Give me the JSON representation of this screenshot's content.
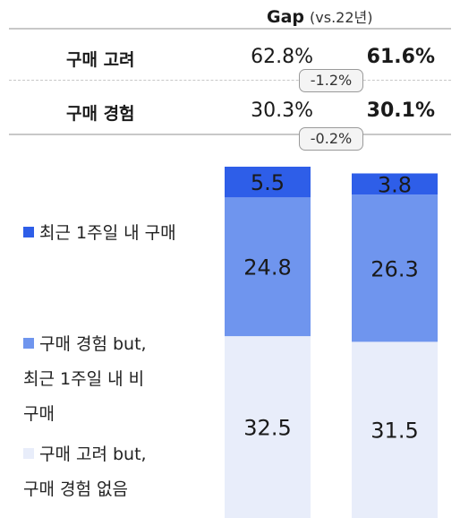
{
  "header": {
    "gap_label": "Gap",
    "gap_sub": "(vs.22년)"
  },
  "rows": [
    {
      "label": "구매 고려",
      "prev": "62.8%",
      "curr": "61.6%",
      "change": "-1.2%"
    },
    {
      "label": "구매 경험",
      "prev": "30.3%",
      "curr": "30.1%",
      "change": "-0.2%"
    }
  ],
  "legend": [
    {
      "label": "최근 1주일 내 구매",
      "lines": [
        "최근 1주일 내 구매"
      ],
      "color": "#2e5ee8"
    },
    {
      "label": "구매 경험 but, 최근 1주일 내 비 구매",
      "lines": [
        "구매 경험 but,",
        "최근 1주일 내 비",
        "구매"
      ],
      "color": "#6f95ee"
    },
    {
      "label": "구매 고려 but, 구매 경험 없음",
      "lines": [
        "구매 고려 but,",
        "구매 경험 없음"
      ],
      "color": "#e8edfa"
    }
  ],
  "chart_data": {
    "type": "bar",
    "stacked": true,
    "title": "",
    "xlabel": "",
    "ylabel": "",
    "categories": [
      "",
      ""
    ],
    "series": [
      {
        "name": "최근 1주일 내 구매",
        "values": [
          5.5,
          3.8
        ],
        "labels": [
          "5.5",
          "3.8"
        ],
        "color": "#2e5ee8"
      },
      {
        "name": "구매 경험 but, 최근 1주일 내 비 구매",
        "values": [
          24.8,
          26.3
        ],
        "labels": [
          "24.8",
          "26.3"
        ],
        "color": "#6f95ee"
      },
      {
        "name": "구매 고려 but, 구매 경험 없음",
        "values": [
          32.5,
          31.5
        ],
        "labels": [
          "32.5",
          "31.5"
        ],
        "color": "#e8edfa"
      }
    ],
    "grid": false,
    "legend_position": "left"
  }
}
